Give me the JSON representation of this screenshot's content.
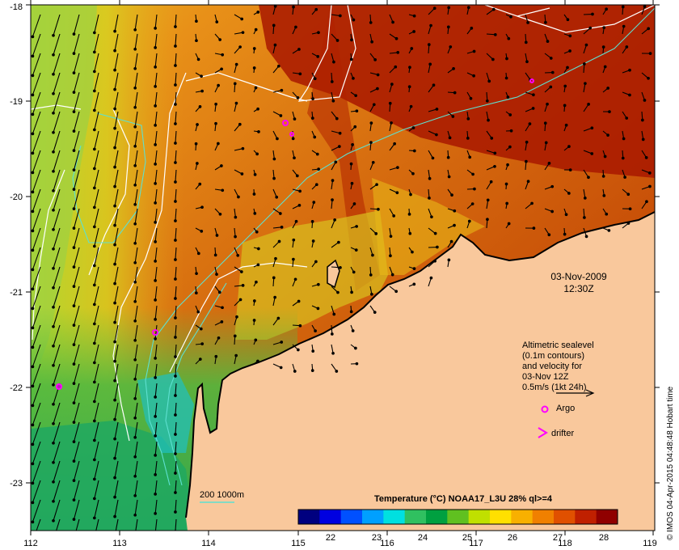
{
  "map": {
    "lon_ticks": [
      "112",
      "113",
      "114",
      "115",
      "116",
      "117",
      "118",
      "119"
    ],
    "lat_ticks": [
      "-18",
      "-19",
      "-20",
      "-21",
      "-22",
      "-23"
    ],
    "date": "03-Nov-2009",
    "time": "12:30Z",
    "land_color": "#f9c89c",
    "sea_colors": [
      "#c84a00",
      "#e07a10",
      "#f0a020",
      "#e8d020",
      "#90d030",
      "#30b840",
      "#20c0c0"
    ],
    "contour_color": "#ffffff",
    "isobath_color": "#5ee0d0",
    "argo_color": "#ff00ff"
  },
  "legend": {
    "line1": "Altimetric sealevel",
    "line2": "(0.1m contours)",
    "line3": "and velocity for",
    "line4": "03-Nov 12Z",
    "line5": "0.5m/s (1kt 24h)",
    "argo_label": "Argo",
    "drifter_label": "drifter",
    "isobath_label": "200  1000m"
  },
  "colorbar": {
    "title": "Temperature (°C) NOAA17_L3U 28% ql>=4",
    "ticks": [
      "22",
      "23",
      "24",
      "25",
      "26",
      "27",
      "28"
    ],
    "colors": [
      "#00007f",
      "#0000e0",
      "#0050ff",
      "#00a0ff",
      "#00e0e0",
      "#30c060",
      "#00a040",
      "#60c020",
      "#c0e000",
      "#ffe000",
      "#f8b000",
      "#f08000",
      "#e05000",
      "#c02000",
      "#900000"
    ]
  },
  "credit": "© IMOS 04-Apr-2015 04:48:48 Hobart time"
}
